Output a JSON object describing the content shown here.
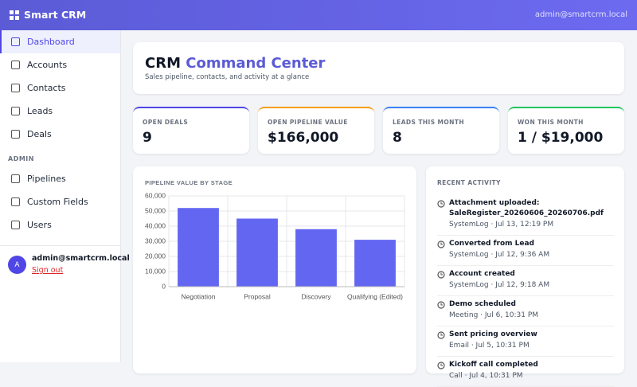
{
  "header": {
    "brand": "Smart CRM",
    "user": "admin@smartcrm.local"
  },
  "sidebar": {
    "nav": [
      "Dashboard",
      "Accounts",
      "Contacts",
      "Leads",
      "Deals"
    ],
    "section": "ADMIN",
    "admin_nav": [
      "Pipelines",
      "Custom Fields",
      "Users"
    ],
    "avatar": "A",
    "user": "admin@smartcrm.local",
    "sign_out": "Sign out"
  },
  "page": {
    "title_main": "CRM",
    "title_accent": "Command Center",
    "subtitle": "Sales pipeline, contacts, and activity at a glance"
  },
  "kpis": [
    {
      "label": "OPEN DEALS",
      "value": "9",
      "color": "#4f46e5"
    },
    {
      "label": "OPEN PIPELINE VALUE",
      "value": "$166,000",
      "color": "#f59e0b"
    },
    {
      "label": "LEADS THIS MONTH",
      "value": "8",
      "color": "#3b82f6"
    },
    {
      "label": "WON THIS MONTH",
      "value": "1 / $19,000",
      "color": "#22c55e"
    }
  ],
  "chart_data": {
    "type": "bar",
    "title": "PIPELINE VALUE BY STAGE",
    "categories": [
      "Negotiation",
      "Proposal",
      "Discovery",
      "Qualifying (Edited)"
    ],
    "values": [
      52000,
      45000,
      38000,
      31000
    ],
    "color": "#6366f1",
    "ylim": [
      0,
      60000
    ],
    "yticks": [
      0,
      {
        "value": 10000,
        "label": "10,000"
      },
      {
        "value": 20000,
        "label": "20,000"
      },
      {
        "value": 30000,
        "label": "30,000"
      },
      {
        "value": 40000,
        "label": "40,000"
      },
      {
        "value": 50000,
        "label": "50,000"
      },
      {
        "value": 60000,
        "label": "60,000"
      }
    ],
    "grid": true
  },
  "activity": {
    "title": "RECENT ACTIVITY",
    "items": [
      {
        "title": "Attachment uploaded: SaleRegister_20260606_20260706.pdf",
        "meta": "SystemLog · Jul 13, 12:19 PM"
      },
      {
        "title": "Converted from Lead",
        "meta": "SystemLog · Jul 12, 9:36 AM"
      },
      {
        "title": "Account created",
        "meta": "SystemLog · Jul 12, 9:18 AM"
      },
      {
        "title": "Demo scheduled",
        "meta": "Meeting · Jul 6, 10:31 PM"
      },
      {
        "title": "Sent pricing overview",
        "meta": "Email · Jul 5, 10:31 PM"
      },
      {
        "title": "Kickoff call completed",
        "meta": "Call · Jul 4, 10:31 PM"
      }
    ]
  }
}
